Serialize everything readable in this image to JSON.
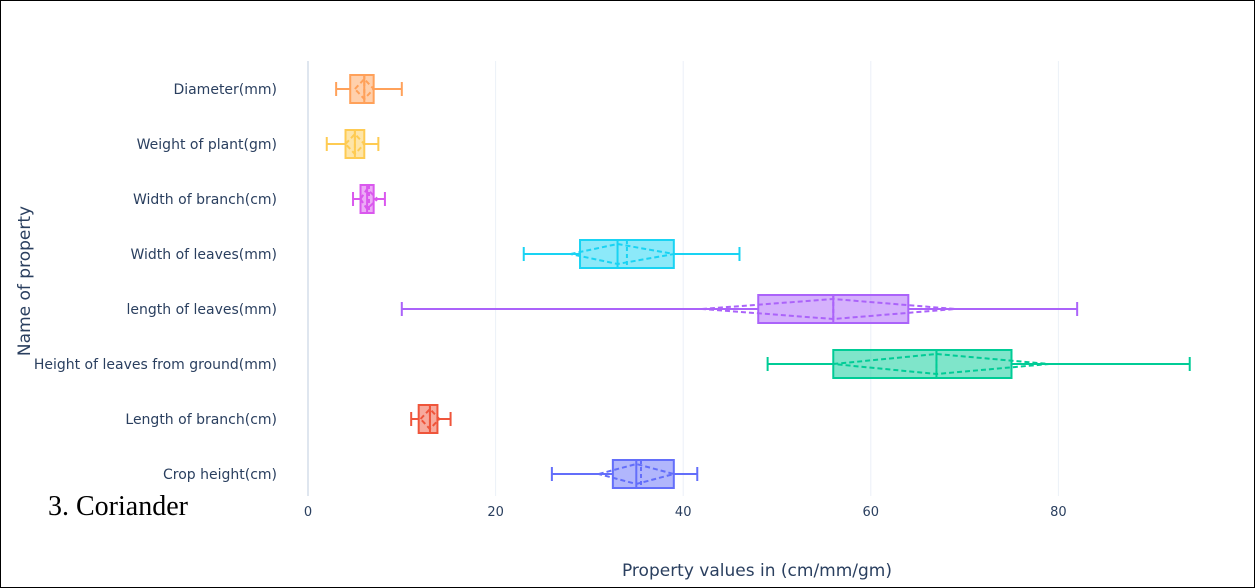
{
  "caption": "3. Coriander",
  "chart_data": {
    "type": "box",
    "orientation": "horizontal",
    "xlabel": "Property values in (cm/mm/gm)",
    "ylabel": "Name of property",
    "xlim": [
      0,
      95
    ],
    "xticks": [
      0,
      20,
      40,
      60,
      80
    ],
    "grid": true,
    "notched": true,
    "series": [
      {
        "name": "Diameter(mm)",
        "color": "#FFA15A",
        "min": 3,
        "q1": 4.5,
        "median": 6,
        "q3": 7,
        "max": 10,
        "mean": 6,
        "notch": [
          5,
          7
        ]
      },
      {
        "name": "Weight of plant(gm)",
        "color": "#FECB52",
        "min": 2,
        "q1": 4,
        "median": 5,
        "q3": 6,
        "max": 7.5,
        "mean": 5,
        "notch": [
          4,
          6
        ]
      },
      {
        "name": "Width of branch(cm)",
        "color": "#FF6692",
        "min": 4.8,
        "q1": 5.6,
        "median": 6.3,
        "q3": 7,
        "max": 8.2,
        "mean": 6.5,
        "notch": [
          5.6,
          7.4
        ],
        "color_display": "#DA58EE"
      },
      {
        "name": "Width of leaves(mm)",
        "color": "#19D3F3",
        "min": 23,
        "q1": 29,
        "median": 33,
        "q3": 39,
        "max": 46,
        "mean": 34,
        "notch": [
          28,
          39
        ]
      },
      {
        "name": "length of leaves(mm)",
        "color": "#AB63FA",
        "min": 10,
        "q1": 48,
        "median": 56,
        "q3": 64,
        "max": 82,
        "mean": 56,
        "notch": [
          42,
          69
        ]
      },
      {
        "name": "Height of leaves from ground(mm)",
        "color": "#00CC96",
        "min": 49,
        "q1": 56,
        "median": 67,
        "q3": 75,
        "max": 94,
        "mean": 67,
        "notch": [
          56,
          79
        ]
      },
      {
        "name": "Length of branch(cm)",
        "color": "#EF553B",
        "min": 11,
        "q1": 11.8,
        "median": 13,
        "q3": 13.8,
        "max": 15.2,
        "mean": 13,
        "notch": [
          12,
          14
        ]
      },
      {
        "name": "Crop height(cm)",
        "color": "#636EFA",
        "min": 26,
        "q1": 32.5,
        "median": 35,
        "q3": 39,
        "max": 41.5,
        "mean": 35.5,
        "notch": [
          31,
          39
        ]
      }
    ]
  }
}
